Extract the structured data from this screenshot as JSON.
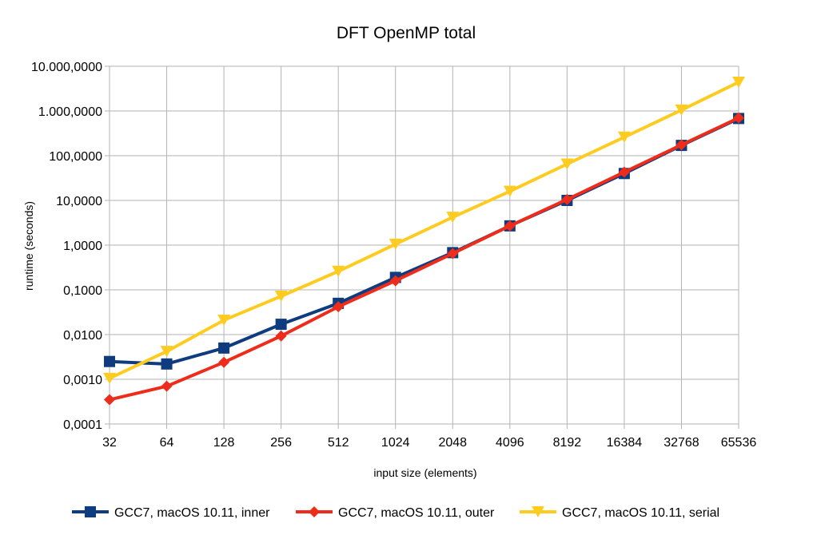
{
  "chart_data": {
    "type": "line",
    "title": "DFT OpenMP total",
    "xlabel": "input size (elements)",
    "ylabel": "runtime (seconds)",
    "y_scale": "log10",
    "ylim": [
      0.0001,
      10000
    ],
    "y_ticks": [
      {
        "value": 0.0001,
        "label": "0,0001"
      },
      {
        "value": 0.001,
        "label": "0,0010"
      },
      {
        "value": 0.01,
        "label": "0,0100"
      },
      {
        "value": 0.1,
        "label": "0,1000"
      },
      {
        "value": 1,
        "label": "1,0000"
      },
      {
        "value": 10,
        "label": "10,0000"
      },
      {
        "value": 100,
        "label": "100,0000"
      },
      {
        "value": 1000,
        "label": "1.000,0000"
      },
      {
        "value": 10000,
        "label": "10.000,0000"
      }
    ],
    "categories": [
      "32",
      "64",
      "128",
      "256",
      "512",
      "1024",
      "2048",
      "4096",
      "8192",
      "16384",
      "32768",
      "65536"
    ],
    "grid": true,
    "legend_position": "bottom",
    "series": [
      {
        "name": "GCC7, macOS 10.11, inner",
        "color": "#0e3c7e",
        "marker": "square",
        "values": [
          0.0025,
          0.0022,
          0.005,
          0.017,
          0.05,
          0.19,
          0.68,
          2.7,
          10.0,
          40,
          170,
          680
        ]
      },
      {
        "name": "GCC7, macOS 10.11, outer",
        "color": "#ee2c1b",
        "marker": "diamond",
        "values": [
          0.00035,
          0.0007,
          0.0024,
          0.0093,
          0.042,
          0.16,
          0.65,
          2.7,
          10.5,
          43,
          175,
          700
        ]
      },
      {
        "name": "GCC7, macOS 10.11, serial",
        "color": "#fecc20",
        "marker": "triangle-down",
        "values": [
          0.00105,
          0.0042,
          0.021,
          0.072,
          0.26,
          1.05,
          4.2,
          16,
          65,
          260,
          1050,
          4400
        ]
      }
    ]
  }
}
